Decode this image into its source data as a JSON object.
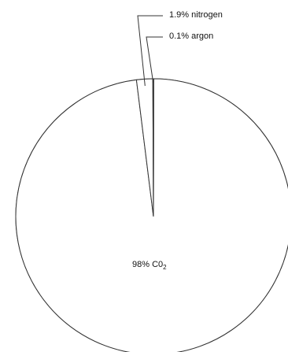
{
  "chart_data": {
    "type": "pie",
    "slices": [
      {
        "label": "98% C0",
        "subscript": "2",
        "value": 98
      },
      {
        "label": "1.9% nitrogen",
        "value": 1.9
      },
      {
        "label": "0.1% argon",
        "value": 0.1
      }
    ],
    "colors": {
      "fill": "#ffffff",
      "stroke": "#333333"
    }
  }
}
